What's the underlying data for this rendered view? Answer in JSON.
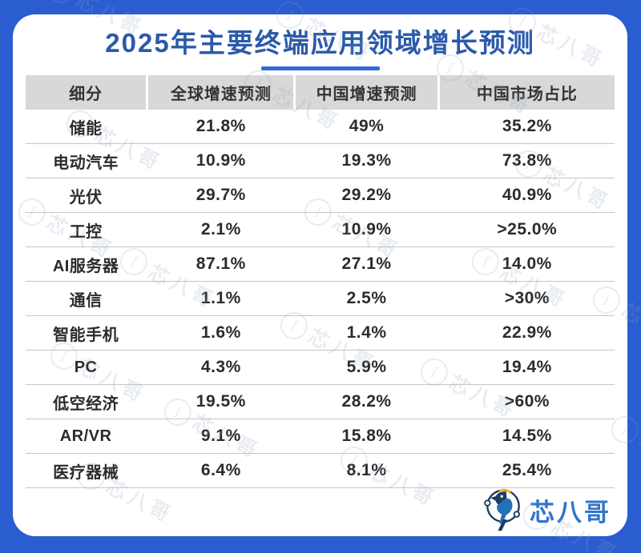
{
  "chart_data": {
    "type": "table",
    "title": "2025年主要终端应用领域增长预测",
    "columns": [
      "细分",
      "全球增速预测",
      "中国增速预测",
      "中国市场占比"
    ],
    "rows": [
      [
        "储能",
        "21.8%",
        "49%",
        "35.2%"
      ],
      [
        "电动汽车",
        "10.9%",
        "19.3%",
        "73.8%"
      ],
      [
        "光伏",
        "29.7%",
        "29.2%",
        "40.9%"
      ],
      [
        "工控",
        "2.1%",
        "10.9%",
        ">25.0%"
      ],
      [
        "AI服务器",
        "87.1%",
        "27.1%",
        "14.0%"
      ],
      [
        "通信",
        "1.1%",
        "2.5%",
        ">30%"
      ],
      [
        "智能手机",
        "1.6%",
        "1.4%",
        "22.9%"
      ],
      [
        "PC",
        "4.3%",
        "5.9%",
        "19.4%"
      ],
      [
        "低空经济",
        "19.5%",
        "28.2%",
        ">60%"
      ],
      [
        "AR/VR",
        "9.1%",
        "15.8%",
        "14.5%"
      ],
      [
        "医疗器械",
        "6.4%",
        "8.1%",
        "25.4%"
      ]
    ]
  },
  "brand": {
    "logo_text": "芯八哥"
  },
  "watermark": {
    "text": "芯八哥"
  },
  "colors": {
    "frame_blue": "#2a5dd0",
    "title_blue": "#2b5aa9",
    "underline_blue": "#2e6bd5",
    "header_bg": "#d8d8d8",
    "header_text": "#333333",
    "cell_text": "#2b2b2b",
    "row_line": "#c6c6c6",
    "logo_blue": "#2f74cf",
    "logo_navy": "#1d3b63",
    "logo_yellow": "#eeb62f",
    "watermark_gray": "#8fa3bf"
  }
}
